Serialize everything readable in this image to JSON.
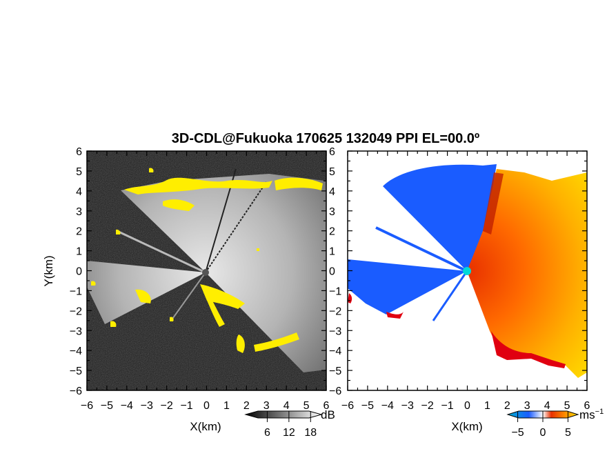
{
  "title": "3D-CDL@Fukuoka 170625 132049 PPI EL=00.0º",
  "colors": {
    "background": "#ffffff",
    "snr_dark": "#1c1c1c",
    "snr_light": "#d8d8d8",
    "highlight": "#ffee00",
    "approach": "#1a5cff",
    "recede_near": "#e83000",
    "recede_far": "#ffe000",
    "boundary": "#e00010",
    "radar_site": "#00d8d8"
  },
  "chart_data": [
    {
      "type": "heatmap",
      "name": "snr",
      "xlabel": "X(km)",
      "ylabel": "Y(km)",
      "xlim": [
        -6,
        6
      ],
      "ylim": [
        -6,
        6
      ],
      "xticks": [
        "−6",
        "−5",
        "−4",
        "−3",
        "−2",
        "−1",
        "0",
        "1",
        "2",
        "3",
        "4",
        "5",
        "6"
      ],
      "yticks": [
        "6",
        "5",
        "4",
        "3",
        "2",
        "1",
        "0",
        "−1",
        "−2",
        "−3",
        "−4",
        "−5",
        "−6"
      ],
      "colorbar": {
        "label": "dB",
        "ticks": [
          "6",
          "12",
          "18"
        ],
        "range": [
          0,
          21
        ]
      },
      "colormap": "grayscale",
      "grid": false
    },
    {
      "type": "heatmap",
      "name": "radial-velocity",
      "xlabel": "X(km)",
      "ylabel": "",
      "xlim": [
        -6,
        6
      ],
      "ylim": [
        -6,
        6
      ],
      "xticks": [
        "−6",
        "−5",
        "−4",
        "−3",
        "−2",
        "−1",
        "0",
        "1",
        "2",
        "3",
        "4",
        "5",
        "6"
      ],
      "yticks": [],
      "colorbar": {
        "label": "ms",
        "label_exponent": "−1",
        "ticks": [
          "−5",
          "0",
          "5"
        ],
        "range": [
          -7,
          7
        ]
      },
      "colormap": "blue-red-yellow",
      "grid": false
    }
  ]
}
